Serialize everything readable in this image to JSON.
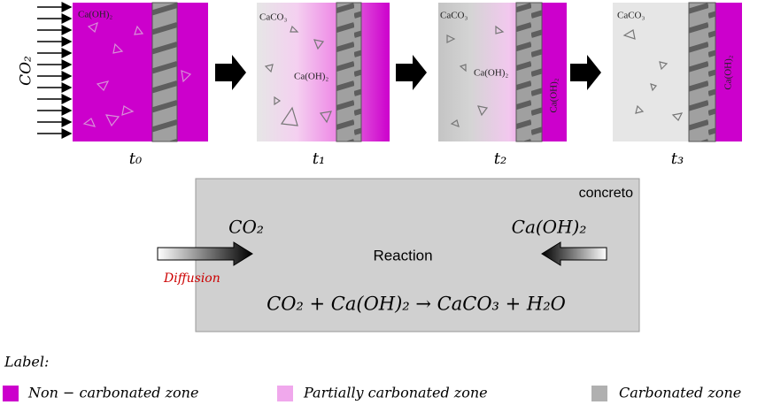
{
  "incoming": "CO₂",
  "panels": [
    {
      "time": "t₀",
      "labels": [
        "Ca(OH)₂"
      ]
    },
    {
      "time": "t₁",
      "labels": [
        "CaCO₃",
        "Ca(OH)₂"
      ]
    },
    {
      "time": "t₂",
      "labels": [
        "CaCO₃",
        "Ca(OH)₂",
        "Ca(OH)₂"
      ]
    },
    {
      "time": "t₃",
      "labels": [
        "CaCO₃",
        "Ca(OH)₂"
      ]
    }
  ],
  "reaction": {
    "medium": "concreto",
    "reactant_left": "CO₂",
    "reactant_right": "Ca(OH)₂",
    "title": "Reaction",
    "diffusion": "Diffusion",
    "equation": "CO₂ + Ca(OH)₂ → CaCO₃ + H₂O"
  },
  "legend": {
    "title": "Label:",
    "items": [
      "Non − carbonated zone",
      "Partially carbonated zone",
      "Carbonated zone"
    ]
  }
}
